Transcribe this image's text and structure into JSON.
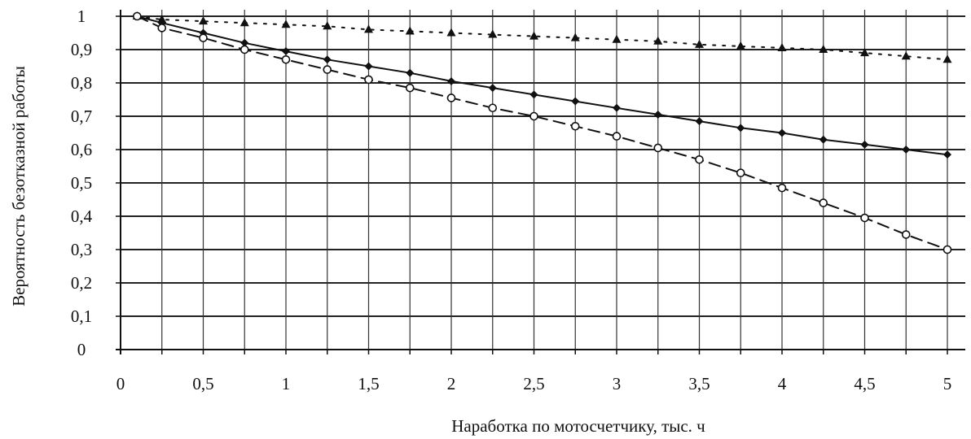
{
  "chart_data": {
    "type": "line",
    "title": "",
    "xlabel": "Наработка по мотосчетчику, тыс. ч",
    "ylabel": "Вероятность безотказной работы",
    "xlim": [
      0,
      5
    ],
    "ylim": [
      0,
      1
    ],
    "grid": true,
    "x_ticks": [
      0,
      0.5,
      1,
      1.5,
      2,
      2.5,
      3,
      3.5,
      4,
      4.5,
      5
    ],
    "x_tick_labels": [
      "0",
      "0,5",
      "1",
      "1,5",
      "2",
      "2,5",
      "3",
      "3,5",
      "4",
      "4,5",
      "5"
    ],
    "y_ticks": [
      0,
      0.1,
      0.2,
      0.3,
      0.4,
      0.5,
      0.6,
      0.7,
      0.8,
      0.9,
      1
    ],
    "y_tick_labels": [
      "0",
      "0,1",
      "0,2",
      "0,3",
      "0,4",
      "0,5",
      "0,6",
      "0,7",
      "0,8",
      "0,9",
      "1"
    ],
    "series": [
      {
        "style": "dotted",
        "marker": "triangle",
        "points": [
          [
            0.1,
            1.0
          ],
          [
            0.25,
            0.99
          ],
          [
            0.5,
            0.985
          ],
          [
            0.75,
            0.98
          ],
          [
            1.0,
            0.975
          ],
          [
            1.25,
            0.97
          ],
          [
            1.5,
            0.96
          ],
          [
            1.75,
            0.955
          ],
          [
            2.0,
            0.95
          ],
          [
            2.25,
            0.945
          ],
          [
            2.5,
            0.94
          ],
          [
            2.75,
            0.935
          ],
          [
            3.0,
            0.93
          ],
          [
            3.25,
            0.925
          ],
          [
            3.5,
            0.915
          ],
          [
            3.75,
            0.91
          ],
          [
            4.0,
            0.905
          ],
          [
            4.25,
            0.9
          ],
          [
            4.5,
            0.89
          ],
          [
            4.75,
            0.88
          ],
          [
            5.0,
            0.87
          ]
        ]
      },
      {
        "style": "solid",
        "marker": "diamond",
        "points": [
          [
            0.1,
            1.0
          ],
          [
            0.25,
            0.98
          ],
          [
            0.5,
            0.95
          ],
          [
            0.75,
            0.92
          ],
          [
            1.0,
            0.895
          ],
          [
            1.25,
            0.87
          ],
          [
            1.5,
            0.85
          ],
          [
            1.75,
            0.83
          ],
          [
            2.0,
            0.805
          ],
          [
            2.25,
            0.785
          ],
          [
            2.5,
            0.765
          ],
          [
            2.75,
            0.745
          ],
          [
            3.0,
            0.725
          ],
          [
            3.25,
            0.705
          ],
          [
            3.5,
            0.685
          ],
          [
            3.75,
            0.665
          ],
          [
            4.0,
            0.65
          ],
          [
            4.25,
            0.63
          ],
          [
            4.5,
            0.615
          ],
          [
            4.75,
            0.6
          ],
          [
            5.0,
            0.585
          ]
        ]
      },
      {
        "style": "dashed",
        "marker": "circle",
        "points": [
          [
            0.1,
            1.0
          ],
          [
            0.25,
            0.965
          ],
          [
            0.5,
            0.935
          ],
          [
            0.75,
            0.9
          ],
          [
            1.0,
            0.87
          ],
          [
            1.25,
            0.84
          ],
          [
            1.5,
            0.81
          ],
          [
            1.75,
            0.785
          ],
          [
            2.0,
            0.755
          ],
          [
            2.25,
            0.725
          ],
          [
            2.5,
            0.7
          ],
          [
            2.75,
            0.67
          ],
          [
            3.0,
            0.64
          ],
          [
            3.25,
            0.605
          ],
          [
            3.5,
            0.57
          ],
          [
            3.75,
            0.53
          ],
          [
            4.0,
            0.485
          ],
          [
            4.25,
            0.44
          ],
          [
            4.5,
            0.395
          ],
          [
            4.75,
            0.345
          ],
          [
            5.0,
            0.3
          ]
        ]
      }
    ]
  }
}
